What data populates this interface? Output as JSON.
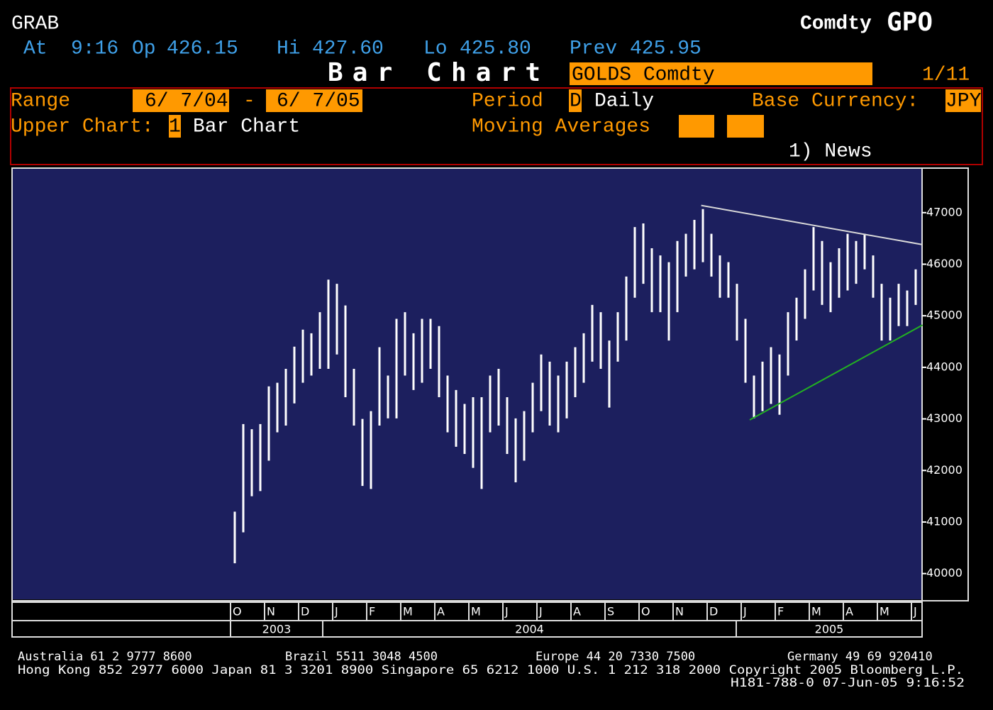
{
  "header": {
    "app": "GRAB",
    "market": "Comdty",
    "ticker": "GPO",
    "quote": {
      "at_label": "At",
      "time": "9:16",
      "open_label": "Op",
      "open": "426.15",
      "high_label": "Hi",
      "high": "427.60",
      "low_label": "Lo",
      "low": "425.80",
      "prev_label": "Prev",
      "prev": "425.95"
    },
    "title": "Bar Chart",
    "security": "GOLDS Comdty",
    "page": "1/11"
  },
  "settings": {
    "range_label": "Range",
    "range_start": "6/ 7/04",
    "range_sep": "-",
    "range_end": "6/ 7/05",
    "period_label": "Period",
    "period_code": "D",
    "period_value": "Daily",
    "currency_label": "Base Currency:",
    "currency": "JPY",
    "upper_chart_label": "Upper Chart:",
    "upper_chart_code": "1",
    "upper_chart_value": "Bar Chart",
    "moving_averages_label": "Moving Averages",
    "news": "1) News"
  },
  "chart_data": {
    "type": "range_bar",
    "color": "#ffffff",
    "categories": [
      "O",
      null,
      null,
      null,
      "N",
      null,
      null,
      null,
      "D",
      null,
      null,
      null,
      "J",
      null,
      null,
      null,
      "F",
      null,
      null,
      null,
      "M",
      null,
      null,
      null,
      "A",
      null,
      null,
      null,
      "M",
      null,
      null,
      null,
      "J",
      null,
      null,
      null,
      "J",
      null,
      null,
      null,
      "A",
      null,
      null,
      null,
      "S",
      null,
      null,
      null,
      "O",
      null,
      null,
      null,
      "N",
      null,
      null,
      null,
      "D",
      null,
      null,
      null,
      "J",
      null,
      null,
      null,
      "F",
      null,
      null,
      null,
      "M",
      null,
      null,
      null,
      "A",
      null,
      null,
      null,
      "M",
      null,
      null,
      null,
      "J"
    ],
    "high": [
      41200,
      42900,
      42800,
      42900,
      43630,
      43700,
      43970,
      44400,
      44730,
      44660,
      45070,
      45700,
      45620,
      45200,
      43970,
      43000,
      43150,
      44390,
      43840,
      44940,
      45070,
      44660,
      44940,
      44940,
      44800,
      43840,
      43560,
      43290,
      43420,
      43420,
      43840,
      43970,
      43420,
      43010,
      43150,
      43700,
      44250,
      44110,
      43840,
      44110,
      44390,
      44660,
      45210,
      45070,
      44520,
      45070,
      45760,
      46720,
      46790,
      46310,
      46170,
      46040,
      46450,
      46590,
      46860,
      47070,
      46590,
      46170,
      46040,
      45620,
      44940,
      43840,
      44110,
      44390,
      44250,
      45070,
      45350,
      45900,
      46720,
      46450,
      46040,
      46310,
      46590,
      46450,
      46590,
      46170,
      45620,
      45350,
      45620,
      45490,
      45900
    ],
    "low": [
      40200,
      40800,
      41500,
      41600,
      42190,
      42740,
      42870,
      43300,
      43700,
      43840,
      43970,
      43970,
      44250,
      43420,
      42870,
      41700,
      41640,
      42870,
      43010,
      43010,
      43840,
      43560,
      43700,
      43970,
      43420,
      42740,
      42460,
      42320,
      42050,
      41640,
      42740,
      42870,
      42320,
      41770,
      42190,
      42740,
      43150,
      42870,
      42740,
      43010,
      43420,
      43700,
      44110,
      43970,
      43220,
      44110,
      44520,
      45350,
      45620,
      45070,
      45070,
      44520,
      45070,
      45760,
      45900,
      46040,
      45760,
      45350,
      45350,
      44520,
      43700,
      43010,
      43150,
      43290,
      43080,
      43840,
      44520,
      44940,
      45490,
      45210,
      45070,
      45350,
      45490,
      45620,
      45900,
      45350,
      44520,
      44520,
      44800,
      44800,
      45210
    ],
    "years": [
      "2003",
      "2004",
      "2005"
    ],
    "ylim": [
      39500,
      47850
    ],
    "yticks": [
      40000,
      41000,
      42000,
      43000,
      44000,
      45000,
      46000,
      47000
    ],
    "trendlines": [
      {
        "color": "#d8d8d8",
        "x": [
          55.3,
          81.3
        ],
        "values": [
          47140,
          46380
        ]
      },
      {
        "color": "#22b022",
        "x": [
          61,
          81.3
        ],
        "values": [
          42980,
          44820
        ]
      }
    ]
  },
  "footer": {
    "line1": [
      "Australia 61 2 9777 8600",
      "Brazil 5511 3048 4500",
      "Europe 44 20 7330 7500",
      "Germany 49 69 920410"
    ],
    "line2": "Hong Kong 852 2977 6000 Japan 81 3 3201 8900 Singapore 65 6212 1000 U.S. 1 212 318 2000 Copyright 2005 Bloomberg L.P.",
    "line3": "H181-788-0 07-Jun-05  9:16:52"
  }
}
